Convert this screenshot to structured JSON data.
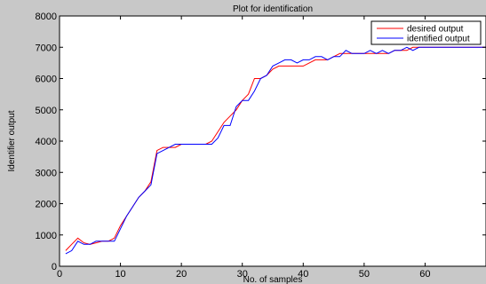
{
  "chart_data": {
    "type": "line",
    "title": "Plot for identification",
    "xlabel": "No. of samples",
    "ylabel": "Identifier output",
    "xlim": [
      0,
      70
    ],
    "ylim": [
      0,
      8000
    ],
    "xticks": [
      0,
      10,
      20,
      30,
      40,
      50,
      60
    ],
    "yticks": [
      0,
      1000,
      2000,
      3000,
      4000,
      5000,
      6000,
      7000,
      8000
    ],
    "grid": false,
    "legend_position": "top-right",
    "series": [
      {
        "name": "desired output",
        "color": "#ff0000",
        "x": [
          1,
          2,
          3,
          4,
          5,
          6,
          7,
          8,
          9,
          10,
          11,
          12,
          13,
          14,
          15,
          16,
          17,
          18,
          19,
          20,
          21,
          22,
          23,
          24,
          25,
          26,
          27,
          28,
          29,
          30,
          31,
          32,
          33,
          34,
          35,
          36,
          37,
          38,
          39,
          40,
          41,
          42,
          43,
          44,
          45,
          46,
          47,
          48,
          49,
          50,
          51,
          52,
          53,
          54,
          55,
          56,
          57,
          58,
          59,
          60,
          61,
          62,
          63,
          64,
          65,
          66,
          67,
          68,
          69,
          70
        ],
        "y": [
          500,
          700,
          900,
          750,
          700,
          750,
          800,
          800,
          900,
          1300,
          1600,
          1900,
          2200,
          2400,
          2700,
          3700,
          3800,
          3800,
          3800,
          3900,
          3900,
          3900,
          3900,
          3900,
          4000,
          4300,
          4600,
          4800,
          5000,
          5300,
          5500,
          6000,
          6000,
          6100,
          6300,
          6400,
          6400,
          6400,
          6400,
          6400,
          6500,
          6600,
          6600,
          6600,
          6700,
          6800,
          6800,
          6800,
          6800,
          6800,
          6800,
          6800,
          6800,
          6800,
          6900,
          6900,
          6900,
          7000,
          7000,
          7000,
          7000,
          7000,
          7000,
          7000,
          7000,
          7000,
          7000,
          7000,
          7000,
          7000
        ]
      },
      {
        "name": "identified output",
        "color": "#0000ff",
        "x": [
          1,
          2,
          3,
          4,
          5,
          6,
          7,
          8,
          9,
          10,
          11,
          12,
          13,
          14,
          15,
          16,
          17,
          18,
          19,
          20,
          21,
          22,
          23,
          24,
          25,
          26,
          27,
          28,
          29,
          30,
          31,
          32,
          33,
          34,
          35,
          36,
          37,
          38,
          39,
          40,
          41,
          42,
          43,
          44,
          45,
          46,
          47,
          48,
          49,
          50,
          51,
          52,
          53,
          54,
          55,
          56,
          57,
          58,
          59,
          60,
          61,
          62,
          63,
          64,
          65,
          66,
          67,
          68,
          69,
          70
        ],
        "y": [
          400,
          500,
          800,
          700,
          700,
          800,
          800,
          800,
          800,
          1200,
          1600,
          1900,
          2200,
          2400,
          2600,
          3600,
          3700,
          3800,
          3900,
          3900,
          3900,
          3900,
          3900,
          3900,
          3900,
          4100,
          4500,
          4500,
          5100,
          5300,
          5300,
          5600,
          6000,
          6100,
          6400,
          6500,
          6600,
          6600,
          6500,
          6600,
          6600,
          6700,
          6700,
          6600,
          6700,
          6700,
          6900,
          6800,
          6800,
          6800,
          6900,
          6800,
          6900,
          6800,
          6900,
          6900,
          7000,
          6900,
          7000,
          7000,
          7000,
          7000,
          7000,
          7000,
          7000,
          7000,
          7000,
          7000,
          7000,
          7000
        ]
      }
    ]
  }
}
